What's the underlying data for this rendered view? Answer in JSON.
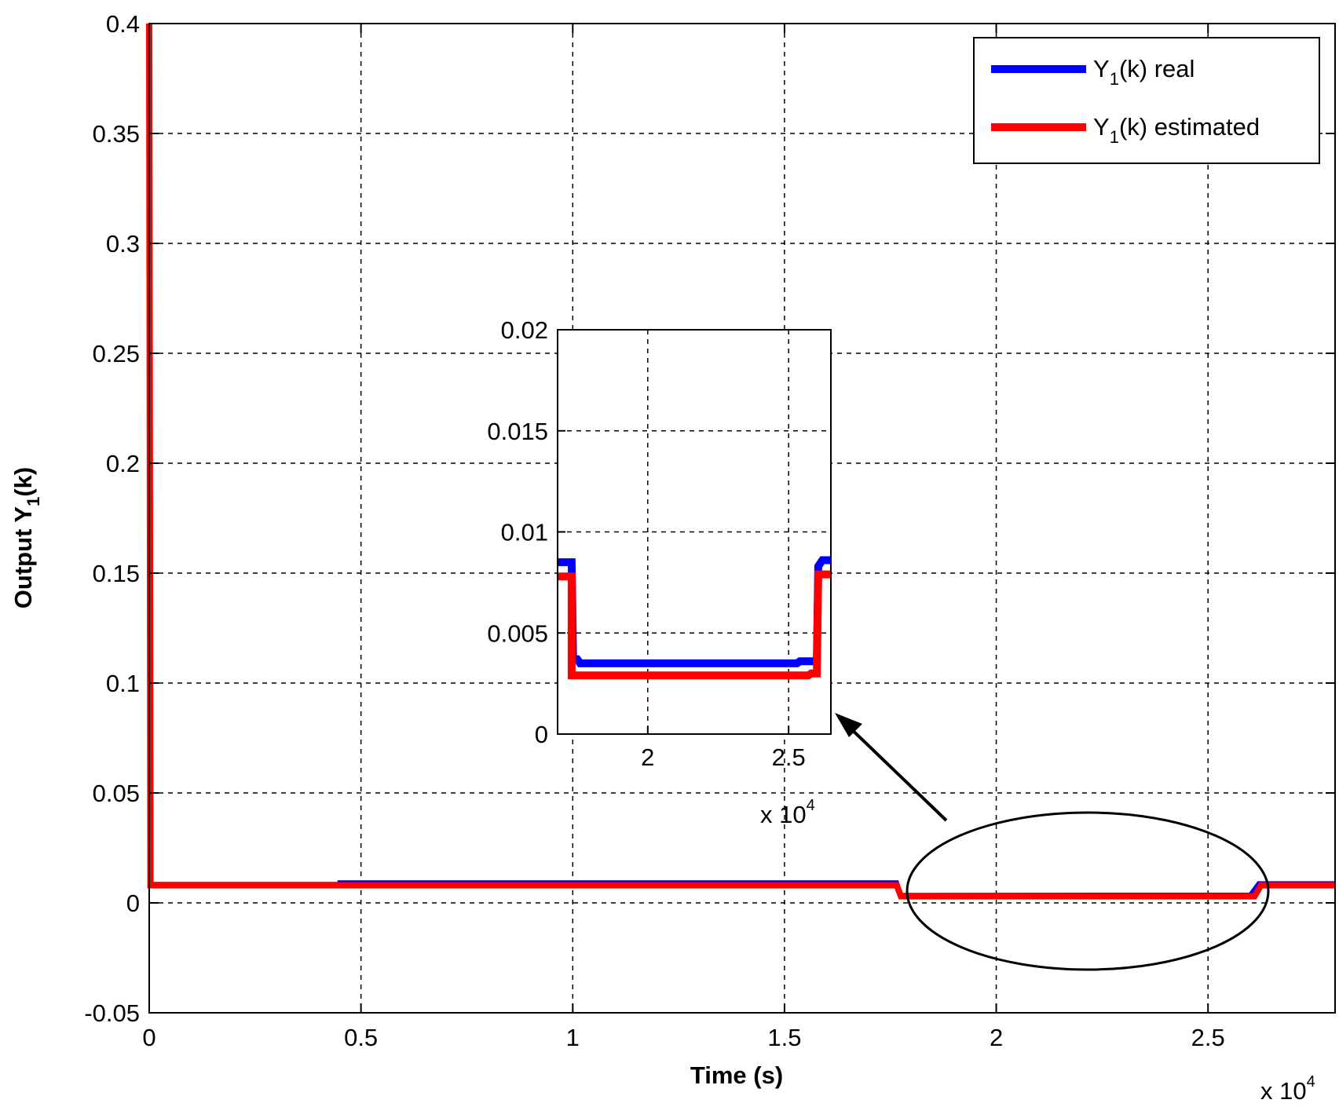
{
  "chart_data": {
    "type": "line",
    "title": "",
    "xlabel": "Time (s)",
    "ylabel_main": "Output Y",
    "ylabel_sub": "1",
    "ylabel_tail": "(k)",
    "x_multiplier_base": "x 10",
    "x_multiplier_exp": "4",
    "xlim": [
      0,
      2.8
    ],
    "ylim": [
      -0.05,
      0.4
    ],
    "x_ticks": [
      0,
      0.5,
      1,
      1.5,
      2,
      2.5
    ],
    "x_tick_labels": [
      "0",
      "0.5",
      "1",
      "1.5",
      "2",
      "2.5"
    ],
    "y_ticks": [
      -0.05,
      0,
      0.05,
      0.1,
      0.15,
      0.2,
      0.25,
      0.3,
      0.35,
      0.4
    ],
    "y_tick_labels": [
      "-0.05",
      "0",
      "0.05",
      "0.1",
      "0.15",
      "0.2",
      "0.25",
      "0.3",
      "0.35",
      "0.4"
    ],
    "grid": true,
    "legend_position": "top-right",
    "series": [
      {
        "name_main": "Y",
        "name_sub": "1",
        "name_tail": "(k) real",
        "color": "#0000ff",
        "x": [
          0,
          0.45,
          0.45,
          1.765,
          1.775,
          2.6,
          2.62,
          2.8
        ],
        "y": [
          0.0085,
          0.0085,
          0.0092,
          0.0092,
          0.0035,
          0.0036,
          0.0088,
          0.0088
        ]
      },
      {
        "name_main": "Y",
        "name_sub": "1",
        "name_tail": "(k) estimated",
        "color": "#ff0000",
        "x": [
          0,
          0,
          0.003,
          1.765,
          1.775,
          2.61,
          2.625,
          2.8
        ],
        "y": [
          0.4,
          0.4,
          0.008,
          0.008,
          0.003,
          0.003,
          0.008,
          0.008
        ]
      }
    ],
    "inset": {
      "xlim": [
        1.68,
        2.65
      ],
      "ylim": [
        0,
        0.02
      ],
      "x_ticks": [
        2,
        2.5
      ],
      "x_tick_labels": [
        "2",
        "2.5"
      ],
      "y_ticks": [
        0,
        0.005,
        0.01,
        0.015,
        0.02
      ],
      "y_tick_labels": [
        "0",
        "0.005",
        "0.01",
        "0.015",
        "0.02"
      ],
      "x_multiplier_base": "x 10",
      "x_multiplier_exp": "4",
      "series": [
        {
          "color": "#0000ff",
          "x": [
            1.68,
            1.73,
            1.735,
            1.75,
            1.76,
            2.53,
            2.54,
            2.6,
            2.605,
            2.62,
            2.65
          ],
          "y": [
            0.0085,
            0.0085,
            0.0037,
            0.0037,
            0.0035,
            0.0035,
            0.0036,
            0.0036,
            0.0083,
            0.0086,
            0.0086
          ]
        },
        {
          "color": "#ff0000",
          "x": [
            1.68,
            1.73,
            1.73,
            2.57,
            2.58,
            2.6,
            2.605,
            2.65
          ],
          "y": [
            0.0078,
            0.0078,
            0.0029,
            0.0029,
            0.003,
            0.003,
            0.0079,
            0.0079
          ]
        }
      ]
    }
  }
}
